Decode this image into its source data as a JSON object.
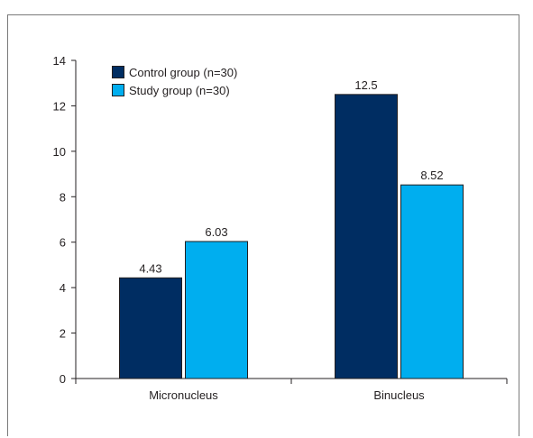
{
  "chart_data": {
    "type": "bar",
    "categories": [
      "Micronucleus",
      "Binucleus"
    ],
    "series": [
      {
        "name": "Control group (n=30)",
        "values": [
          4.43,
          12.5
        ],
        "labels": [
          "4.43",
          "12.5"
        ],
        "color": "#002d62"
      },
      {
        "name": "Study group (n=30)",
        "values": [
          6.03,
          8.52
        ],
        "labels": [
          "6.03",
          "8.52"
        ],
        "color": "#00aeef"
      }
    ],
    "yticks": [
      "0",
      "2",
      "4",
      "6",
      "8",
      "10",
      "12",
      "14"
    ],
    "ylim": [
      0,
      14
    ],
    "legend_position": "top-left",
    "grid": false,
    "title": "",
    "xlabel": "",
    "ylabel": ""
  }
}
